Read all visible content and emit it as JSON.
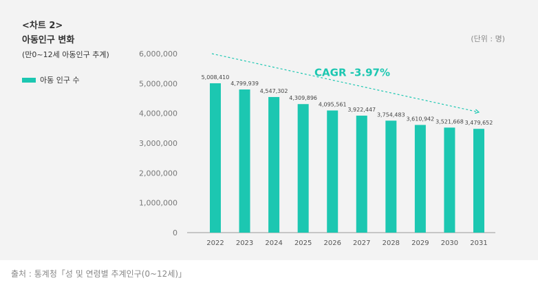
{
  "header": {
    "tag": "<차트 2>",
    "title": "아동인구 변화",
    "subtitle": "(만0~12세 아동인구 추계)",
    "unit": "(단위 : 명)"
  },
  "source": "출처 : 통계청「성 및 연령별 추계인구(0~12세)」",
  "colors": {
    "bar": "#1cc7b1",
    "axis": "#999999",
    "grid": "#dddddd"
  },
  "chart_data": {
    "type": "bar",
    "categories": [
      "2022",
      "2023",
      "2024",
      "2025",
      "2026",
      "2027",
      "2028",
      "2029",
      "2030",
      "2031"
    ],
    "series": [
      {
        "name": "아동 인구 수",
        "values": [
          5008410,
          4799939,
          4547302,
          4309896,
          4095561,
          3922447,
          3754483,
          3610942,
          3521668,
          3479652
        ],
        "labels": [
          "5,008,410",
          "4,799,939",
          "4,547,302",
          "4,309,896",
          "4,095,561",
          "3,922,447",
          "3,754,483",
          "3,610,942",
          "3,521,668",
          "3,479,652"
        ]
      }
    ],
    "yticks": [
      0,
      1000000,
      2000000,
      3000000,
      4000000,
      5000000,
      6000000
    ],
    "ytick_labels": [
      "0",
      "1,000,000",
      "2,000,000",
      "3,000,000",
      "4,000,000",
      "5,000,000",
      "6,000,000"
    ],
    "ylim": [
      0,
      6000000
    ],
    "legend_position": "left",
    "grid": false,
    "annotation": {
      "text": "CAGR -3.97%",
      "from": [
        "2022",
        6000000
      ],
      "to": [
        "2031",
        4040000
      ]
    }
  }
}
